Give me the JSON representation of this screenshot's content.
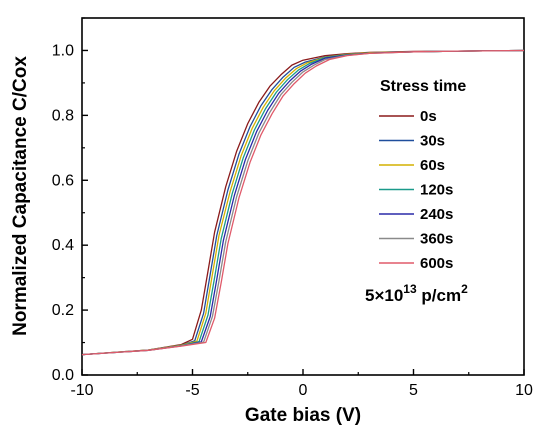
{
  "chart_data": {
    "type": "line",
    "xlabel": "Gate bias (V)",
    "ylabel": "Normalized Capacitance C/Cox",
    "xlim": [
      -10,
      10
    ],
    "ylim": [
      0,
      1.1
    ],
    "xticks": [
      -10,
      -5,
      0,
      5,
      10
    ],
    "xtick_labels": [
      "-10",
      "-5",
      "0",
      "5",
      "10"
    ],
    "yticks": [
      0,
      0.2,
      0.4,
      0.6,
      0.8,
      1.0
    ],
    "ytick_labels": [
      "0.0",
      "0.2",
      "0.4",
      "0.6",
      "0.8",
      "1.0"
    ],
    "grid": false,
    "legend_title": "Stress time",
    "legend_position": "right",
    "annotation": {
      "base": "5×10",
      "exponent": "13",
      "unit": " p/cm",
      "unit_exponent": "2"
    },
    "series": [
      {
        "name": "0s",
        "color": "#8b1a1a",
        "x": [
          -10,
          -7,
          -5.5,
          -5,
          -4.6,
          -4.3,
          -4,
          -3.5,
          -3,
          -2.5,
          -2,
          -1.5,
          -1,
          -0.5,
          0,
          1,
          2,
          3,
          5,
          7,
          10
        ],
        "y": [
          0.063,
          0.077,
          0.094,
          0.11,
          0.2,
          0.32,
          0.44,
          0.58,
          0.69,
          0.775,
          0.84,
          0.89,
          0.925,
          0.955,
          0.97,
          0.984,
          0.99,
          0.994,
          0.997,
          0.998,
          1.0
        ]
      },
      {
        "name": "30s",
        "color": "#1f4e9c",
        "x": [
          -10,
          -7,
          -5.5,
          -4.9,
          -4.5,
          -4.2,
          -3.9,
          -3.4,
          -2.9,
          -2.4,
          -1.9,
          -1.4,
          -0.9,
          -0.4,
          0.1,
          1,
          2,
          3,
          5,
          7,
          10
        ],
        "y": [
          0.063,
          0.077,
          0.092,
          0.105,
          0.19,
          0.31,
          0.43,
          0.57,
          0.68,
          0.765,
          0.83,
          0.88,
          0.918,
          0.948,
          0.964,
          0.98,
          0.988,
          0.993,
          0.996,
          0.998,
          1.0
        ]
      },
      {
        "name": "60s",
        "color": "#d4b000",
        "x": [
          -10,
          -7,
          -5.5,
          -4.8,
          -4.4,
          -4.1,
          -3.8,
          -3.3,
          -2.8,
          -2.3,
          -1.8,
          -1.3,
          -0.8,
          -0.3,
          0.2,
          1,
          2,
          3,
          5,
          7,
          10
        ],
        "y": [
          0.063,
          0.077,
          0.092,
          0.104,
          0.19,
          0.31,
          0.43,
          0.565,
          0.675,
          0.76,
          0.825,
          0.876,
          0.914,
          0.944,
          0.962,
          0.979,
          0.988,
          0.993,
          0.996,
          0.998,
          1.0
        ]
      },
      {
        "name": "120s",
        "color": "#1a9a8a",
        "x": [
          -10,
          -7,
          -5.5,
          -4.7,
          -4.3,
          -4.0,
          -3.7,
          -3.2,
          -2.7,
          -2.2,
          -1.7,
          -1.2,
          -0.7,
          -0.2,
          0.3,
          1,
          2,
          3,
          5,
          7,
          10
        ],
        "y": [
          0.063,
          0.076,
          0.091,
          0.103,
          0.185,
          0.3,
          0.42,
          0.56,
          0.67,
          0.755,
          0.82,
          0.872,
          0.91,
          0.94,
          0.96,
          0.978,
          0.987,
          0.992,
          0.996,
          0.998,
          1.0
        ]
      },
      {
        "name": "240s",
        "color": "#2a2aa8",
        "x": [
          -10,
          -7,
          -5.5,
          -4.6,
          -4.2,
          -3.9,
          -3.6,
          -3.1,
          -2.6,
          -2.1,
          -1.6,
          -1.1,
          -0.6,
          -0.1,
          0.4,
          1,
          2,
          3,
          5,
          7,
          10
        ],
        "y": [
          0.063,
          0.076,
          0.09,
          0.102,
          0.18,
          0.295,
          0.415,
          0.555,
          0.665,
          0.75,
          0.815,
          0.868,
          0.906,
          0.937,
          0.958,
          0.976,
          0.986,
          0.992,
          0.996,
          0.998,
          1.0
        ]
      },
      {
        "name": "360s",
        "color": "#8a8a8a",
        "x": [
          -10,
          -7,
          -5.5,
          -4.5,
          -4.1,
          -3.8,
          -3.5,
          -3.0,
          -2.5,
          -2.0,
          -1.5,
          -1.0,
          -0.5,
          0,
          0.5,
          1,
          2,
          3,
          5,
          7,
          10
        ],
        "y": [
          0.063,
          0.076,
          0.09,
          0.101,
          0.18,
          0.29,
          0.41,
          0.55,
          0.66,
          0.745,
          0.81,
          0.864,
          0.902,
          0.934,
          0.955,
          0.972,
          0.985,
          0.991,
          0.996,
          0.998,
          1.0
        ]
      },
      {
        "name": "600s",
        "color": "#e05a6a",
        "x": [
          -10,
          -7,
          -5.5,
          -4.4,
          -4.0,
          -3.7,
          -3.4,
          -2.9,
          -2.4,
          -1.9,
          -1.4,
          -0.9,
          -0.4,
          0.1,
          0.6,
          1.2,
          2,
          3,
          5,
          7,
          10
        ],
        "y": [
          0.063,
          0.076,
          0.089,
          0.1,
          0.175,
          0.285,
          0.405,
          0.545,
          0.655,
          0.74,
          0.805,
          0.86,
          0.898,
          0.93,
          0.952,
          0.972,
          0.984,
          0.991,
          0.996,
          0.998,
          1.0
        ]
      }
    ]
  }
}
